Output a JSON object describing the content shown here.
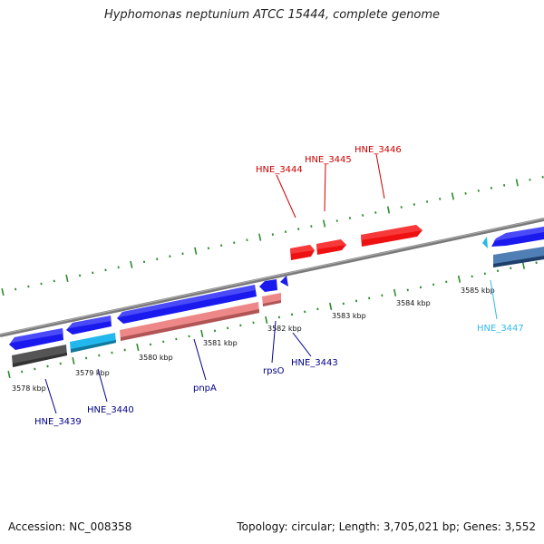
{
  "title": "Hyphomonas neptunium ATCC 15444, complete genome",
  "accession": "Accession: NC_008358",
  "topology": "Topology: circular; Length: 3,705,021 bp; Genes: 3,552",
  "colors": {
    "backbone": "#808080",
    "tick": "#2e8b2e",
    "forward_gene": "#1a1aee",
    "reverse_gene": "#1a1aee",
    "highlight_gene": "#ee1111",
    "cyan_gene": "#22b8ee",
    "pink_gene": "#ee8888",
    "dark_gene": "#555555",
    "steel_gene": "#4f7fb5",
    "label_blue": "#00008b",
    "label_red": "#cc0000",
    "label_cyan": "#33bbee"
  },
  "tick_labels": [
    "3578 kbp",
    "3579 kbp",
    "3580 kbp",
    "3581 kbp",
    "3582 kbp",
    "3583 kbp",
    "3584 kbp",
    "3585 kbp"
  ],
  "gene_labels": [
    {
      "id": "HNE_3444",
      "color": "label_red"
    },
    {
      "id": "HNE_3445",
      "color": "label_red"
    },
    {
      "id": "HNE_3446",
      "color": "label_red"
    },
    {
      "id": "HNE_3443",
      "color": "label_blue"
    },
    {
      "id": "rpsO",
      "color": "label_blue"
    },
    {
      "id": "pnpA",
      "color": "label_blue"
    },
    {
      "id": "HNE_3440",
      "color": "label_blue"
    },
    {
      "id": "HNE_3439",
      "color": "label_blue"
    },
    {
      "id": "HNE_3447",
      "color": "label_cyan"
    }
  ]
}
